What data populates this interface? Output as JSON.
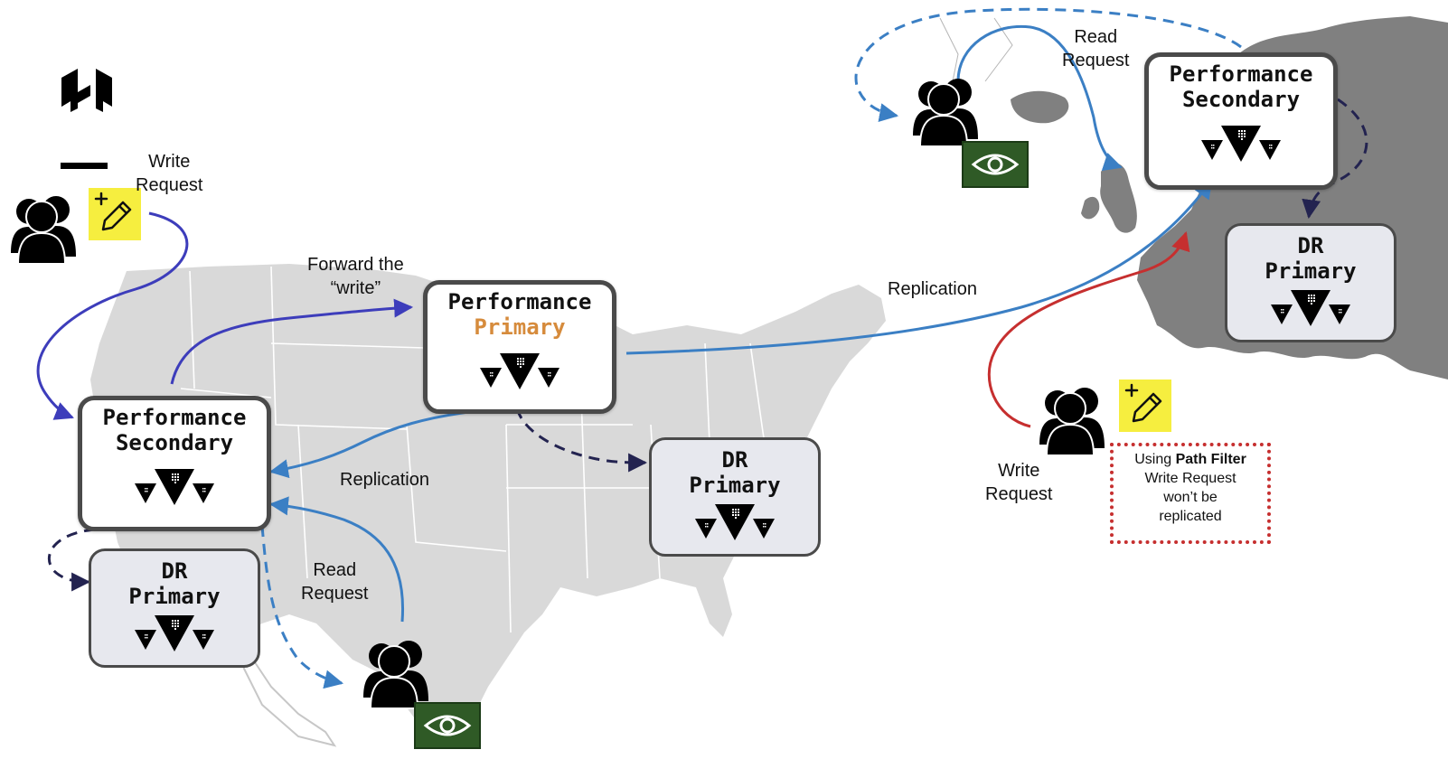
{
  "nodes": {
    "us_perf_primary": {
      "line1": "Performance",
      "line2": "Primary"
    },
    "us_perf_secondary": {
      "line1": "Performance",
      "line2": "Secondary"
    },
    "us_dr_primary_center": {
      "line1": "DR",
      "line2": "Primary"
    },
    "us_dr_primary_west": {
      "line1": "DR",
      "line2": "Primary"
    },
    "eu_perf_secondary": {
      "line1": "Performance",
      "line2": "Secondary"
    },
    "eu_dr_primary": {
      "line1": "DR",
      "line2": "Primary"
    }
  },
  "labels": {
    "write_request_west": [
      "Write",
      "Request"
    ],
    "forward_write": [
      "Forward the",
      "“write”"
    ],
    "replication_us": "Replication",
    "read_request_us": [
      "Read",
      "Request"
    ],
    "replication_atlantic": "Replication",
    "read_request_eu": [
      "Read",
      "Request"
    ],
    "write_request_eu": [
      "Write",
      "Request"
    ]
  },
  "path_filter_note": {
    "prefix": "Using ",
    "bold": "Path Filter",
    "lines": [
      "Write Request",
      "won’t be",
      "replicated"
    ]
  },
  "colors": {
    "write_flow": "#3d3dbb",
    "replication_flow": "#3b7fc4",
    "dr_flow": "#232350",
    "filtered_write": "#c62f2f",
    "primary_accent": "#d68b3c",
    "map_us": "#d9d9d9",
    "map_eu": "#808080",
    "note_yellow": "#f6ee3f",
    "eye_badge": "#2f5a26"
  },
  "icons": [
    "hashicorp-logo-icon",
    "users-icon",
    "edit-pencil-icon",
    "eye-icon",
    "vault-triangles-icon"
  ]
}
